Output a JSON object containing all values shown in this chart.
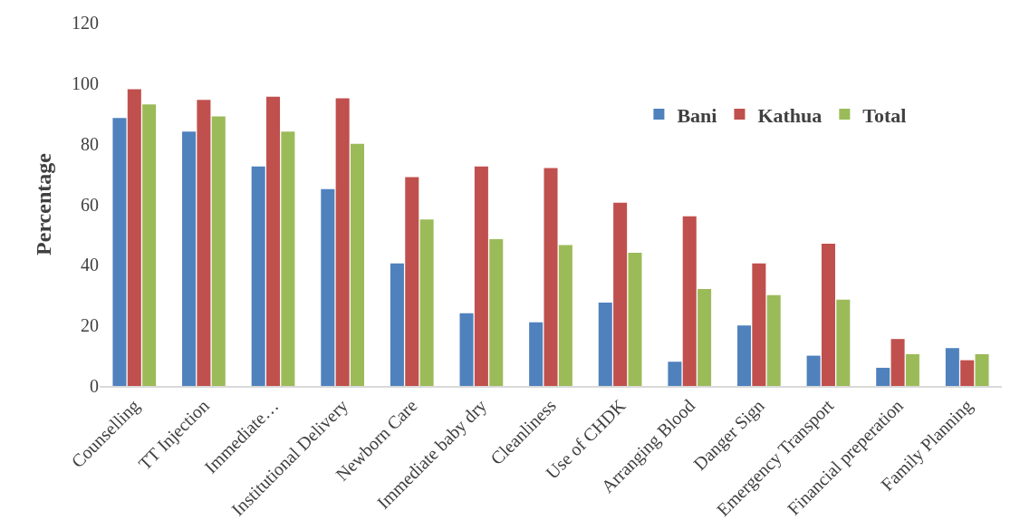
{
  "chart_data": {
    "type": "bar",
    "ylabel": "Percentage",
    "categories": [
      "Counselling",
      "TT Injection",
      "Immediate…",
      "Institutional Delivery",
      "Newborn Care",
      "Immediate baby dry",
      "Cleanliness",
      "Use of CHDK",
      "Arranging Blood",
      "Danger Sign",
      "Emergency Transport",
      "Financial preperation",
      "Family Planning"
    ],
    "series": [
      {
        "name": "Bani",
        "color": "#4f81bd",
        "values": [
          88.5,
          84,
          72.5,
          65,
          40.5,
          24,
          21,
          27.5,
          8,
          20,
          10,
          6,
          12.5
        ]
      },
      {
        "name": "Kathua",
        "color": "#c0504d",
        "values": [
          98,
          94.5,
          95.5,
          95,
          69,
          72.5,
          72,
          60.5,
          56,
          40.5,
          47,
          15.5,
          8.5
        ]
      },
      {
        "name": "Total",
        "color": "#9bbb59",
        "values": [
          93,
          89,
          84,
          80,
          55,
          48.5,
          46.5,
          44,
          32,
          30,
          28.5,
          10.5,
          10.5
        ]
      }
    ],
    "ylim": [
      0,
      120
    ],
    "yticks": [
      0,
      20,
      40,
      60,
      80,
      100,
      120
    ],
    "legend": "top right"
  }
}
